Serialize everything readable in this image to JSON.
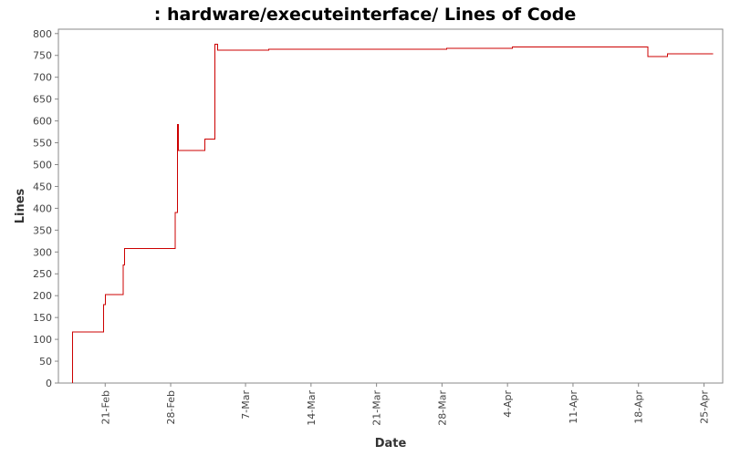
{
  "chart_data": {
    "type": "line",
    "title": ": hardware/executeinterface/ Lines of Code",
    "xlabel": "Date",
    "ylabel": "Lines",
    "ylim": [
      0,
      810
    ],
    "xlim": [
      "2008-02-16",
      "2008-04-27"
    ],
    "y_ticks": [
      "0",
      "50",
      "100",
      "150",
      "200",
      "250",
      "300",
      "350",
      "400",
      "450",
      "500",
      "550",
      "600",
      "650",
      "700",
      "750",
      "800"
    ],
    "x_ticks": [
      {
        "label": "21-Feb",
        "date": "2008-02-21"
      },
      {
        "label": "28-Feb",
        "date": "2008-02-28"
      },
      {
        "label": "7-Mar",
        "date": "2008-03-07"
      },
      {
        "label": "14-Mar",
        "date": "2008-03-14"
      },
      {
        "label": "21-Mar",
        "date": "2008-03-21"
      },
      {
        "label": "28-Mar",
        "date": "2008-03-28"
      },
      {
        "label": "4-Apr",
        "date": "2008-04-04"
      },
      {
        "label": "11-Apr",
        "date": "2008-04-11"
      },
      {
        "label": "18-Apr",
        "date": "2008-04-18"
      },
      {
        "label": "25-Apr",
        "date": "2008-04-25"
      }
    ],
    "grid": false,
    "line_color": "#cc0000",
    "series": [
      {
        "step": true,
        "points": [
          {
            "x": "2008-02-17 12:00",
            "y": 0
          },
          {
            "x": "2008-02-17 12:00",
            "y": 117
          },
          {
            "x": "2008-02-20 20:00",
            "y": 117
          },
          {
            "x": "2008-02-20 20:00",
            "y": 180
          },
          {
            "x": "2008-02-21 00:00",
            "y": 180
          },
          {
            "x": "2008-02-21 00:00",
            "y": 203
          },
          {
            "x": "2008-02-22 22:00",
            "y": 203
          },
          {
            "x": "2008-02-22 22:00",
            "y": 270
          },
          {
            "x": "2008-02-23 02:00",
            "y": 270
          },
          {
            "x": "2008-02-23 02:00",
            "y": 308
          },
          {
            "x": "2008-02-28 12:00",
            "y": 308
          },
          {
            "x": "2008-02-28 12:00",
            "y": 390
          },
          {
            "x": "2008-02-28 18:00",
            "y": 390
          },
          {
            "x": "2008-02-28 18:00",
            "y": 592
          },
          {
            "x": "2008-02-28 20:00",
            "y": 592
          },
          {
            "x": "2008-02-28 20:00",
            "y": 532
          },
          {
            "x": "2008-03-02 16:00",
            "y": 532
          },
          {
            "x": "2008-03-02 16:00",
            "y": 558
          },
          {
            "x": "2008-03-03 18:00",
            "y": 558
          },
          {
            "x": "2008-03-03 18:00",
            "y": 776
          },
          {
            "x": "2008-03-04 00:00",
            "y": 776
          },
          {
            "x": "2008-03-04 00:00",
            "y": 762
          },
          {
            "x": "2008-03-09 12:00",
            "y": 762
          },
          {
            "x": "2008-03-09 12:00",
            "y": 764
          },
          {
            "x": "2008-03-28 12:00",
            "y": 764
          },
          {
            "x": "2008-03-28 12:00",
            "y": 766
          },
          {
            "x": "2008-04-04 12:00",
            "y": 766
          },
          {
            "x": "2008-04-04 12:00",
            "y": 769
          },
          {
            "x": "2008-04-19 00:00",
            "y": 769
          },
          {
            "x": "2008-04-19 00:00",
            "y": 747
          },
          {
            "x": "2008-04-21 02:00",
            "y": 747
          },
          {
            "x": "2008-04-21 02:00",
            "y": 754
          },
          {
            "x": "2008-04-26 00:00",
            "y": 754
          }
        ]
      }
    ]
  }
}
